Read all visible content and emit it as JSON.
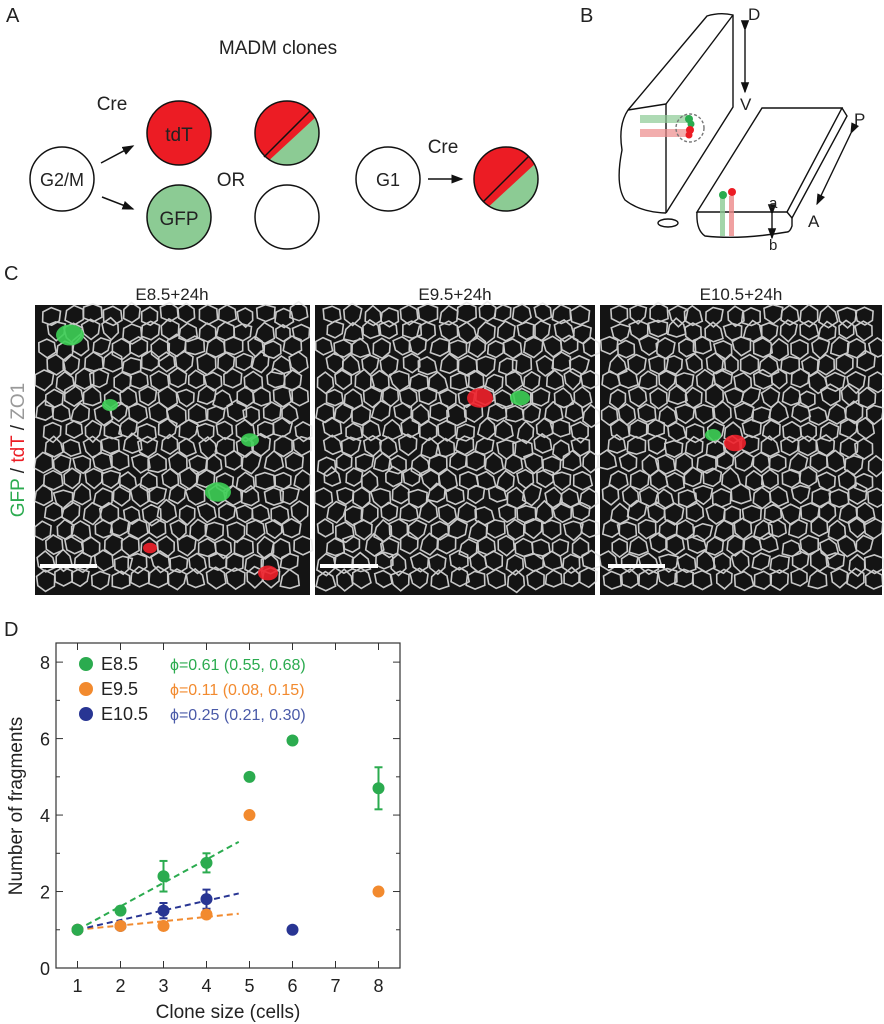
{
  "panel_labels": {
    "a": "A",
    "b": "B",
    "c": "C",
    "d": "D"
  },
  "panel_a": {
    "title": "MADM clones",
    "g2m": "G2/M",
    "cre1": "Cre",
    "tdt": "tdT",
    "gfp": "GFP",
    "or": "OR",
    "g1": "G1",
    "cre2": "Cre",
    "colors": {
      "red": "#ec1c24",
      "green": "#8ccb94"
    }
  },
  "panel_b": {
    "d": "D",
    "v": "V",
    "p": "P",
    "a_axis": "A",
    "a": "a",
    "b": "b"
  },
  "panel_c": {
    "side_label": {
      "gfp": "GFP",
      "sep1": " / ",
      "tdt": "tdT",
      "sep2": " / ",
      "zo1": "ZO1"
    },
    "images": [
      {
        "title": "E8.5+24h"
      },
      {
        "title": "E9.5+24h"
      },
      {
        "title": "E10.5+24h"
      }
    ]
  },
  "chart_data": {
    "type": "scatter",
    "xlabel": "Clone size (cells)",
    "ylabel": "Number of fragments",
    "xlim": [
      0.5,
      8.5
    ],
    "ylim": [
      0,
      8.5
    ],
    "xticks": [
      1,
      2,
      3,
      4,
      5,
      6,
      7,
      8
    ],
    "yticks": [
      0,
      2,
      4,
      6,
      8
    ],
    "legend_position": "top-left",
    "series": [
      {
        "name": "E8.5",
        "color": "#2bab4f",
        "phi": "ϕ=0.61 (0.55, 0.68)",
        "phi_color": "#2bab4f",
        "points": [
          [
            1,
            1,
            0
          ],
          [
            2,
            1.5,
            0.1
          ],
          [
            3,
            2.4,
            0.4
          ],
          [
            4,
            2.75,
            0.25
          ],
          [
            5,
            5,
            0
          ],
          [
            6,
            5.95,
            0
          ],
          [
            8,
            4.7,
            0.55
          ]
        ],
        "fit": [
          [
            1,
            1
          ],
          [
            4.75,
            3.3
          ]
        ]
      },
      {
        "name": "E9.5",
        "color": "#f28a2e",
        "phi": "ϕ=0.11 (0.08, 0.15)",
        "phi_color": "#f28a2e",
        "points": [
          [
            1,
            1,
            0
          ],
          [
            2,
            1.1,
            0
          ],
          [
            3,
            1.1,
            0.1
          ],
          [
            4,
            1.4,
            0.1
          ],
          [
            5,
            4,
            0
          ],
          [
            8,
            2,
            0
          ]
        ],
        "fit": [
          [
            1,
            1
          ],
          [
            4.75,
            1.42
          ]
        ]
      },
      {
        "name": "E10.5",
        "color": "#283593",
        "phi": "ϕ=0.25 (0.21, 0.30)",
        "phi_color": "#4a5aa8",
        "points": [
          [
            1,
            1,
            0
          ],
          [
            2,
            1.1,
            0
          ],
          [
            3,
            1.5,
            0.2
          ],
          [
            4,
            1.8,
            0.25
          ],
          [
            6,
            1,
            0
          ]
        ],
        "fit": [
          [
            1,
            1
          ],
          [
            4.75,
            1.95
          ]
        ]
      }
    ]
  }
}
